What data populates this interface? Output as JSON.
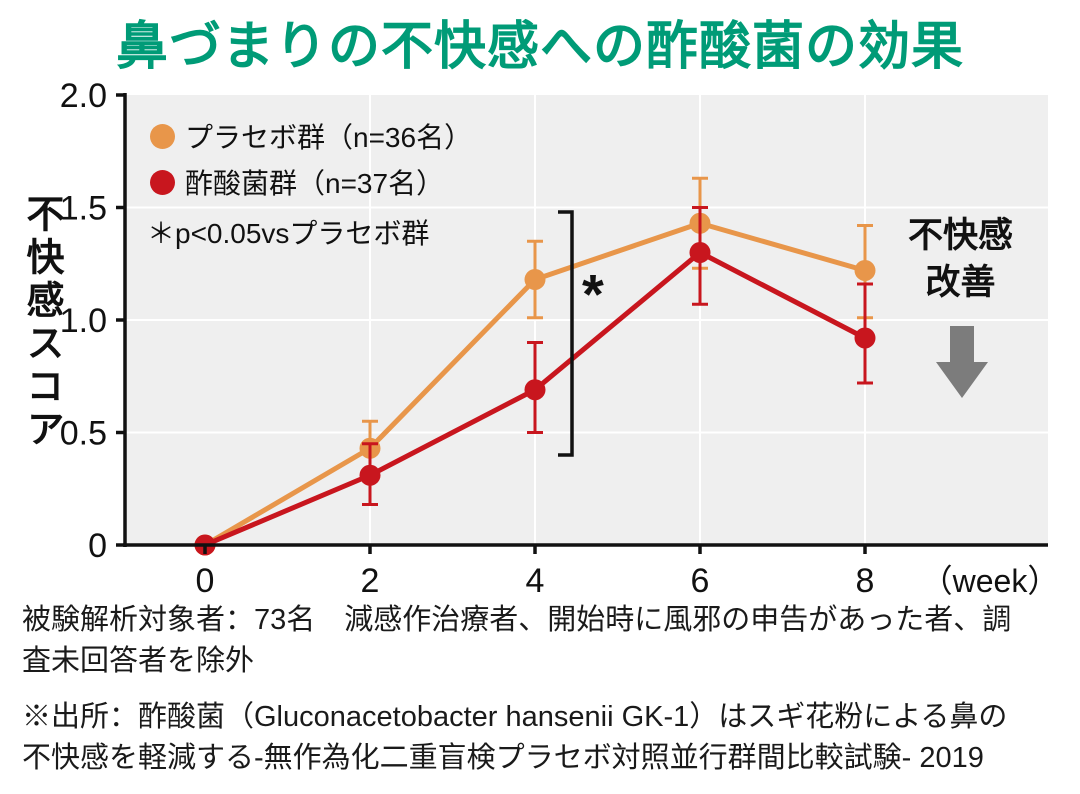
{
  "title": "鼻づまりの不快感への酢酸菌の効果",
  "annotations": {
    "significance": "＊p<0.05vsプラセボ群",
    "improvement_line1": "不快感",
    "improvement_line2": "改善"
  },
  "notes": {
    "analysis": "被験解析対象者：73名　減感作治療者、開始時に風邪の申告があった者、調査未回答者を除外",
    "source": "※出所：酢酸菌（Gluconacetobacter hansenii GK-1）はスギ花粉による鼻の不快感を軽減する-無作為化二重盲検プラセボ対照並行群間比較試験- 2019"
  },
  "colors": {
    "title": "#009B77",
    "plot_bg": "#EFEFEF",
    "grid": "#FFFFFF",
    "axis": "#111111",
    "arrow": "#7C7C7C"
  },
  "chart_data": {
    "type": "line",
    "x": [
      0,
      2,
      4,
      6,
      8
    ],
    "xticks": [
      "0",
      "2",
      "4",
      "6",
      "8"
    ],
    "x_unit_label": "（week）",
    "ylabel": "不快感スコア",
    "ylim": [
      0,
      2.0
    ],
    "ytick_values": [
      0,
      0.5,
      1.0,
      1.5,
      2.0
    ],
    "yticks": [
      "0",
      "0.5",
      "1.0",
      "1.5",
      "2.0"
    ],
    "grid": true,
    "legend_position": "top-left",
    "series": [
      {
        "name": "プラセボ群（n=36名）",
        "color": "#E8964A",
        "values": [
          0,
          0.43,
          1.18,
          1.43,
          1.22
        ],
        "error_minus": [
          0,
          0.13,
          0.17,
          0.2,
          0.21
        ],
        "error_plus": [
          0,
          0.12,
          0.17,
          0.2,
          0.2
        ]
      },
      {
        "name": "酢酸菌群（n=37名）",
        "color": "#C8161E",
        "values": [
          0,
          0.31,
          0.69,
          1.3,
          0.92
        ],
        "error_minus": [
          0,
          0.13,
          0.19,
          0.23,
          0.2
        ],
        "error_plus": [
          0,
          0.14,
          0.21,
          0.2,
          0.24
        ]
      }
    ],
    "significance_marker": {
      "week": 4,
      "from": 0.4,
      "to": 1.48,
      "label": "*"
    }
  }
}
